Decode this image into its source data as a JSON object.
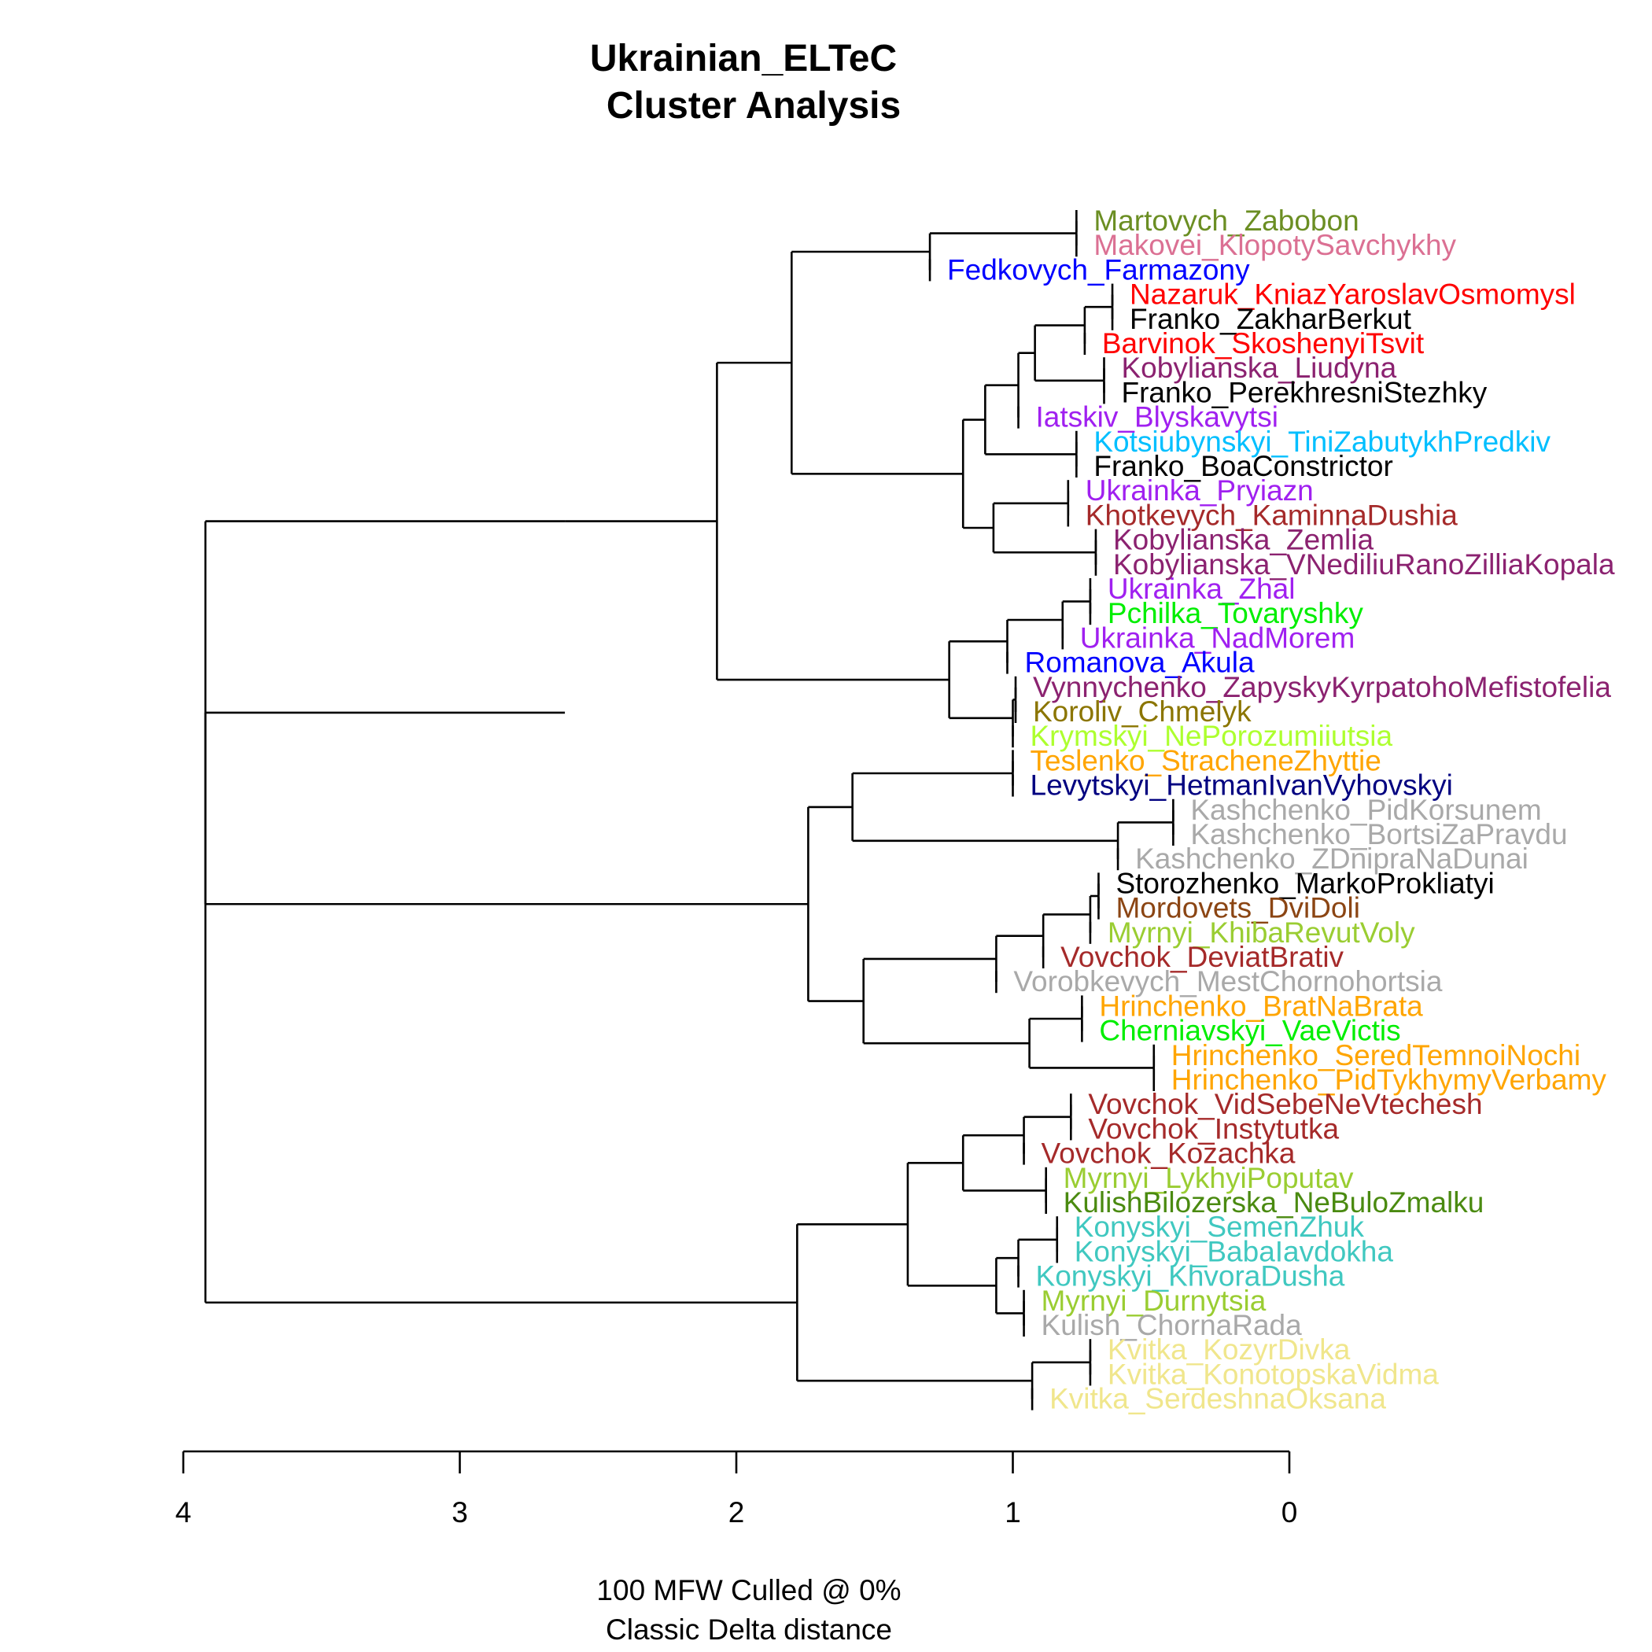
{
  "chart_data": {
    "type": "dendrogram",
    "title_lines": [
      "Ukrainian_ELTeC",
      "Cluster Analysis"
    ],
    "xlabel_lines": [
      "100 MFW  Culled @ 0%",
      "Classic Delta distance"
    ],
    "xlim": [
      4,
      0
    ],
    "xticks": [
      4,
      3,
      2,
      1,
      0
    ],
    "colors": {
      "olive": "#6b8e23",
      "pink": "#db7093",
      "blue": "#0000ff",
      "red": "#ff0000",
      "black": "#000000",
      "plum": "#8b2270",
      "purple": "#a020f0",
      "skyblue": "#00bfff",
      "brown": "#a52a2a",
      "green": "#00ee00",
      "darkolive": "#8b7500",
      "greenyellow": "#adff2f",
      "orange": "#ffa500",
      "navy": "#000080",
      "gray": "#a9a9a9",
      "saddlebrown": "#8b4513",
      "yellowgreen": "#9acd32",
      "turquoise": "#40c8c0",
      "forestgreen": "#4a8a10",
      "khaki": "#f0e68c"
    },
    "leaves": [
      {
        "label": "Martovych_Zabobon",
        "color": "olive"
      },
      {
        "label": "Makovei_KlopotySavchykhy",
        "color": "pink"
      },
      {
        "label": "Fedkovych_Farmazony",
        "color": "blue"
      },
      {
        "label": "Nazaruk_KniazYaroslavOsmomysl",
        "color": "red"
      },
      {
        "label": "Franko_ZakharBerkut",
        "color": "black"
      },
      {
        "label": "Barvinok_SkoshenyiTsvit",
        "color": "red"
      },
      {
        "label": "Kobylianska_Liudyna",
        "color": "plum"
      },
      {
        "label": "Franko_PerekhresniStezhky",
        "color": "black"
      },
      {
        "label": "Iatskiv_Blyskavytsi",
        "color": "purple"
      },
      {
        "label": "Kotsiubynskyi_TiniZabutykhPredkiv",
        "color": "skyblue"
      },
      {
        "label": "Franko_BoaConstrictor",
        "color": "black"
      },
      {
        "label": "Ukrainka_Pryiazn",
        "color": "purple"
      },
      {
        "label": "Khotkevych_KaminnaDushia",
        "color": "brown"
      },
      {
        "label": "Kobylianska_Zemlia",
        "color": "plum"
      },
      {
        "label": "Kobylianska_VNediliuRanoZilliaKopala",
        "color": "plum"
      },
      {
        "label": "Ukrainka_Zhal",
        "color": "purple"
      },
      {
        "label": "Pchilka_Tovaryshky",
        "color": "green"
      },
      {
        "label": "Ukrainka_NadMorem",
        "color": "purple"
      },
      {
        "label": "Romanova_Akula",
        "color": "blue"
      },
      {
        "label": "Vynnychenko_ZapyskyKyrpatohoMefistofelia",
        "color": "plum"
      },
      {
        "label": "Koroliv_Chmelyk",
        "color": "darkolive"
      },
      {
        "label": "Krymskyi_NePorozumiiutsia",
        "color": "greenyellow"
      },
      {
        "label": "Teslenko_StracheneZhyttie",
        "color": "orange"
      },
      {
        "label": "Levytskyi_HetmanIvanVyhovskyi",
        "color": "navy"
      },
      {
        "label": "Kashchenko_PidKorsunem",
        "color": "gray"
      },
      {
        "label": "Kashchenko_BortsiZaPravdu",
        "color": "gray"
      },
      {
        "label": "Kashchenko_ZDnipraNaDunai",
        "color": "gray"
      },
      {
        "label": "Storozhenko_MarkoProkliatyi",
        "color": "black"
      },
      {
        "label": "Mordovets_DviDoli",
        "color": "saddlebrown"
      },
      {
        "label": "Myrnyi_KhibaRevutVoly",
        "color": "yellowgreen"
      },
      {
        "label": "Vovchok_DeviatBrativ",
        "color": "brown"
      },
      {
        "label": "Vorobkevych_MestChornohortsia",
        "color": "gray"
      },
      {
        "label": "Hrinchenko_BratNaBrata",
        "color": "orange"
      },
      {
        "label": "Cherniavskyi_VaeVictis",
        "color": "green"
      },
      {
        "label": "Hrinchenko_SeredTemnoiNochi",
        "color": "orange"
      },
      {
        "label": "Hrinchenko_PidTykhymyVerbamy",
        "color": "orange"
      },
      {
        "label": "Vovchok_VidSebeNeVtechesh",
        "color": "brown"
      },
      {
        "label": "Vovchok_Instytutka",
        "color": "brown"
      },
      {
        "label": "Vovchok_Kozachka",
        "color": "brown"
      },
      {
        "label": "Myrnyi_LykhyiPoputav",
        "color": "yellowgreen"
      },
      {
        "label": "KulishBilozerska_NeBuloZmalku",
        "color": "forestgreen"
      },
      {
        "label": "Konyskyi_SemenZhuk",
        "color": "turquoise"
      },
      {
        "label": "Konyskyi_BabaIavdokha",
        "color": "turquoise"
      },
      {
        "label": "Konyskyi_KhvoraDusha",
        "color": "turquoise"
      },
      {
        "label": "Myrnyi_Durnytsia",
        "color": "yellowgreen"
      },
      {
        "label": "Kulish_ChornaRada",
        "color": "gray"
      },
      {
        "label": "Kvitka_KozyrDivka",
        "color": "khaki"
      },
      {
        "label": "Kvitka_KonotopskaVidma",
        "color": "khaki"
      },
      {
        "label": "Kvitka_SerdeshnaOksana",
        "color": "khaki"
      }
    ],
    "tree": {
      "h": 3.92,
      "c": [
        {
          "h": 2.62,
          "c": [
            {
              "h": 2.07,
              "c": [
                {
                  "h": 1.8,
                  "c": [
                    {
                      "h": 1.3,
                      "c": [
                        {
                          "h": 0.77,
                          "c": [
                            0,
                            1
                          ]
                        },
                        2
                      ]
                    },
                    {
                      "h": 1.18,
                      "c": [
                        {
                          "h": 1.1,
                          "c": [
                            {
                              "h": 0.98,
                              "c": [
                                {
                                  "h": 0.92,
                                  "c": [
                                    {
                                      "h": 0.74,
                                      "c": [
                                        {
                                          "h": 0.64,
                                          "c": [
                                            3,
                                            4
                                          ]
                                        },
                                        5
                                      ]
                                    },
                                    {
                                      "h": 0.67,
                                      "c": [
                                        6,
                                        7
                                      ]
                                    }
                                  ]
                                },
                                8
                              ]
                            },
                            {
                              "h": 0.77,
                              "c": [
                                9,
                                10
                              ]
                            }
                          ]
                        },
                        {
                          "h": 1.07,
                          "c": [
                            {
                              "h": 0.8,
                              "c": [
                                11,
                                12
                              ]
                            },
                            {
                              "h": 0.7,
                              "c": [
                                13,
                                14
                              ]
                            }
                          ]
                        }
                      ]
                    }
                  ]
                },
                {
                  "h": 1.23,
                  "c": [
                    {
                      "h": 1.02,
                      "c": [
                        {
                          "h": 0.82,
                          "c": [
                            {
                              "h": 0.72,
                              "c": [
                                15,
                                16
                              ]
                            },
                            17
                          ]
                        },
                        18
                      ]
                    },
                    {
                      "h": 1.0,
                      "c": [
                        {
                          "h": 0.99,
                          "c": [
                            19,
                            20
                          ]
                        },
                        21
                      ]
                    }
                  ]
                }
              ]
            }
          ]
        },
        {
          "h": 1.74,
          "c": [
            {
              "h": 1.58,
              "c": [
                {
                  "h": 1.0,
                  "c": [
                    22,
                    23
                  ]
                },
                {
                  "h": 0.62,
                  "c": [
                    {
                      "h": 0.42,
                      "c": [
                        24,
                        25
                      ]
                    },
                    26
                  ]
                }
              ]
            },
            {
              "h": 1.54,
              "c": [
                {
                  "h": 1.06,
                  "c": [
                    {
                      "h": 0.89,
                      "c": [
                        {
                          "h": 0.72,
                          "c": [
                            {
                              "h": 0.69,
                              "c": [
                                27,
                                28
                              ]
                            },
                            29
                          ]
                        },
                        30
                      ]
                    },
                    31
                  ]
                },
                {
                  "h": 0.94,
                  "c": [
                    {
                      "h": 0.75,
                      "c": [
                        32,
                        33
                      ]
                    },
                    {
                      "h": 0.49,
                      "c": [
                        34,
                        35
                      ]
                    }
                  ]
                }
              ]
            }
          ]
        }
      ]
    },
    "tree_b": {
      "h": 1.78,
      "c": [
        {
          "h": 1.38,
          "c": [
            {
              "h": 1.18,
              "c": [
                {
                  "h": 0.96,
                  "c": [
                    {
                      "h": 0.79,
                      "c": [
                        36,
                        37
                      ]
                    },
                    38
                  ]
                },
                {
                  "h": 0.88,
                  "c": [
                    39,
                    40
                  ]
                }
              ]
            },
            {
              "h": 1.06,
              "c": [
                {
                  "h": 0.98,
                  "c": [
                    {
                      "h": 0.84,
                      "c": [
                        41,
                        42
                      ]
                    },
                    43
                  ]
                },
                {
                  "h": 0.96,
                  "c": [
                    44,
                    45
                  ]
                }
              ]
            }
          ]
        },
        {
          "h": 0.93,
          "c": [
            {
              "h": 0.72,
              "c": [
                46,
                47
              ]
            },
            48
          ]
        }
      ]
    }
  }
}
